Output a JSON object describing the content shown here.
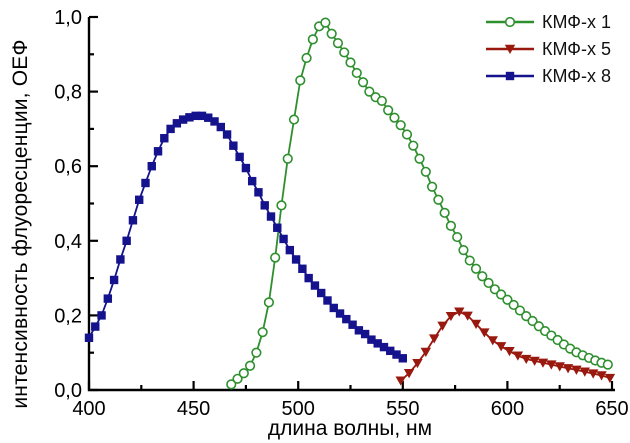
{
  "chart_data": {
    "type": "line",
    "title": "",
    "xlabel": "длина волны, нм",
    "ylabel": "интенсивность флуоресценции, ОЕФ",
    "xlim": [
      400,
      650
    ],
    "ylim": [
      0,
      1
    ],
    "grid": false,
    "legend_position": "top-right",
    "axis_color": "#000000",
    "x_major_ticks": [
      400,
      450,
      500,
      550,
      600,
      650
    ],
    "x_tick_labels": [
      "400",
      "450",
      "500",
      "550",
      "600",
      "650"
    ],
    "x_minor_ticks": [
      425,
      475,
      525,
      575,
      625
    ],
    "y_major_ticks": [
      0,
      0.2,
      0.4,
      0.6,
      0.8,
      1.0
    ],
    "y_tick_labels": [
      "0,0",
      "0,2",
      "0,4",
      "0,6",
      "0,8",
      "1,0"
    ],
    "y_minor_ticks": [
      0.1,
      0.3,
      0.5,
      0.7,
      0.9
    ],
    "series": [
      {
        "id": "kmf-x-1",
        "name": "КМФ-х 1",
        "marker": "circle-open",
        "color": "#2e8f2e",
        "marker_fill": "#ffffff",
        "line_width": 1.8,
        "peak": {
          "x": 513,
          "y": 0.985
        },
        "x": [
          468,
          471,
          474,
          477,
          480,
          483,
          486,
          489,
          492,
          495,
          498,
          501,
          504,
          507,
          510,
          513,
          516,
          519,
          522,
          525,
          528,
          531,
          534,
          537,
          540,
          543,
          546,
          549,
          552,
          555,
          558,
          561,
          564,
          567,
          570,
          573,
          576,
          579,
          582,
          585,
          588,
          591,
          594,
          597,
          600,
          603,
          606,
          609,
          612,
          615,
          618,
          621,
          624,
          627,
          630,
          633,
          636,
          639,
          642,
          645,
          648
        ],
        "y": [
          0.015,
          0.03,
          0.045,
          0.065,
          0.1,
          0.155,
          0.235,
          0.355,
          0.495,
          0.62,
          0.725,
          0.83,
          0.89,
          0.94,
          0.975,
          0.985,
          0.955,
          0.93,
          0.905,
          0.878,
          0.85,
          0.825,
          0.8,
          0.785,
          0.775,
          0.75,
          0.73,
          0.71,
          0.685,
          0.655,
          0.62,
          0.585,
          0.545,
          0.51,
          0.475,
          0.44,
          0.41,
          0.375,
          0.347,
          0.325,
          0.305,
          0.287,
          0.27,
          0.256,
          0.242,
          0.228,
          0.213,
          0.198,
          0.185,
          0.171,
          0.158,
          0.146,
          0.134,
          0.122,
          0.111,
          0.101,
          0.093,
          0.086,
          0.079,
          0.073,
          0.068
        ]
      },
      {
        "id": "kmf-x-5",
        "name": "КМФ-х 5",
        "marker": "triangle-down",
        "color": "#99190f",
        "marker_fill": "#99190f",
        "line_width": 1.8,
        "peak": {
          "x": 577,
          "y": 0.21
        },
        "x": [
          549,
          553,
          557,
          561,
          565,
          569,
          573,
          577,
          581,
          585,
          589,
          593,
          597,
          601,
          605,
          609,
          613,
          617,
          621,
          625,
          629,
          633,
          637,
          641,
          645,
          649
        ],
        "y": [
          0.025,
          0.045,
          0.072,
          0.102,
          0.138,
          0.172,
          0.198,
          0.21,
          0.199,
          0.177,
          0.154,
          0.133,
          0.117,
          0.104,
          0.092,
          0.083,
          0.078,
          0.073,
          0.068,
          0.063,
          0.058,
          0.054,
          0.049,
          0.044,
          0.039,
          0.032
        ]
      },
      {
        "id": "kmf-x-8",
        "name": "КМФ-х 8",
        "marker": "square",
        "color": "#14128c",
        "marker_fill": "#14128c",
        "line_width": 1.8,
        "peak": {
          "x": 452,
          "y": 0.735
        },
        "x": [
          400,
          403,
          406,
          409,
          412,
          415,
          418,
          421,
          424,
          427,
          430,
          433,
          436,
          439,
          442,
          445,
          448,
          451,
          454,
          457,
          460,
          463,
          466,
          469,
          472,
          475,
          478,
          481,
          484,
          487,
          490,
          493,
          496,
          499,
          502,
          505,
          508,
          511,
          514,
          517,
          520,
          523,
          526,
          529,
          532,
          535,
          538,
          541,
          544,
          547,
          550
        ],
        "y": [
          0.14,
          0.17,
          0.2,
          0.245,
          0.295,
          0.35,
          0.4,
          0.455,
          0.51,
          0.555,
          0.6,
          0.64,
          0.675,
          0.7,
          0.715,
          0.725,
          0.731,
          0.735,
          0.735,
          0.73,
          0.72,
          0.705,
          0.685,
          0.655,
          0.625,
          0.595,
          0.56,
          0.53,
          0.495,
          0.465,
          0.435,
          0.405,
          0.375,
          0.35,
          0.325,
          0.3,
          0.28,
          0.26,
          0.24,
          0.22,
          0.205,
          0.19,
          0.175,
          0.16,
          0.15,
          0.135,
          0.125,
          0.115,
          0.105,
          0.095,
          0.085
        ]
      }
    ]
  }
}
